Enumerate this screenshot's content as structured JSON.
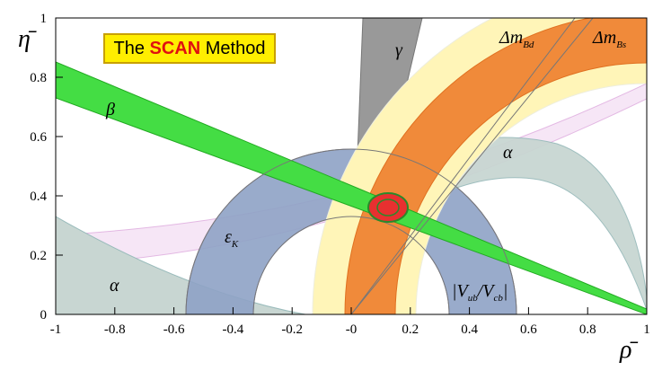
{
  "chart_data": {
    "type": "constraints",
    "title_parts": [
      "The ",
      "SCAN",
      " Method"
    ],
    "x_label": "ρ̄",
    "y_label": "η̄",
    "xlim": [
      -1,
      1
    ],
    "ylim": [
      0,
      1
    ],
    "xticks": [
      -1,
      -0.8,
      -0.6,
      -0.4,
      -0.2,
      {
        "value": 0,
        "label": "-0"
      },
      0.2,
      0.4,
      0.6,
      0.8,
      1
    ],
    "yticks": [
      0,
      0.2,
      0.4,
      0.6,
      0.8,
      1
    ],
    "annotations": [
      [
        "β"
      ],
      [
        "γ"
      ],
      [
        "α"
      ],
      [
        "α"
      ],
      [
        "ε",
        "K"
      ],
      [
        "Δm",
        "Bd"
      ],
      [
        "Δm",
        "Bs"
      ],
      [
        "|V",
        "ub",
        "/V",
        "cb",
        "|"
      ]
    ]
  }
}
